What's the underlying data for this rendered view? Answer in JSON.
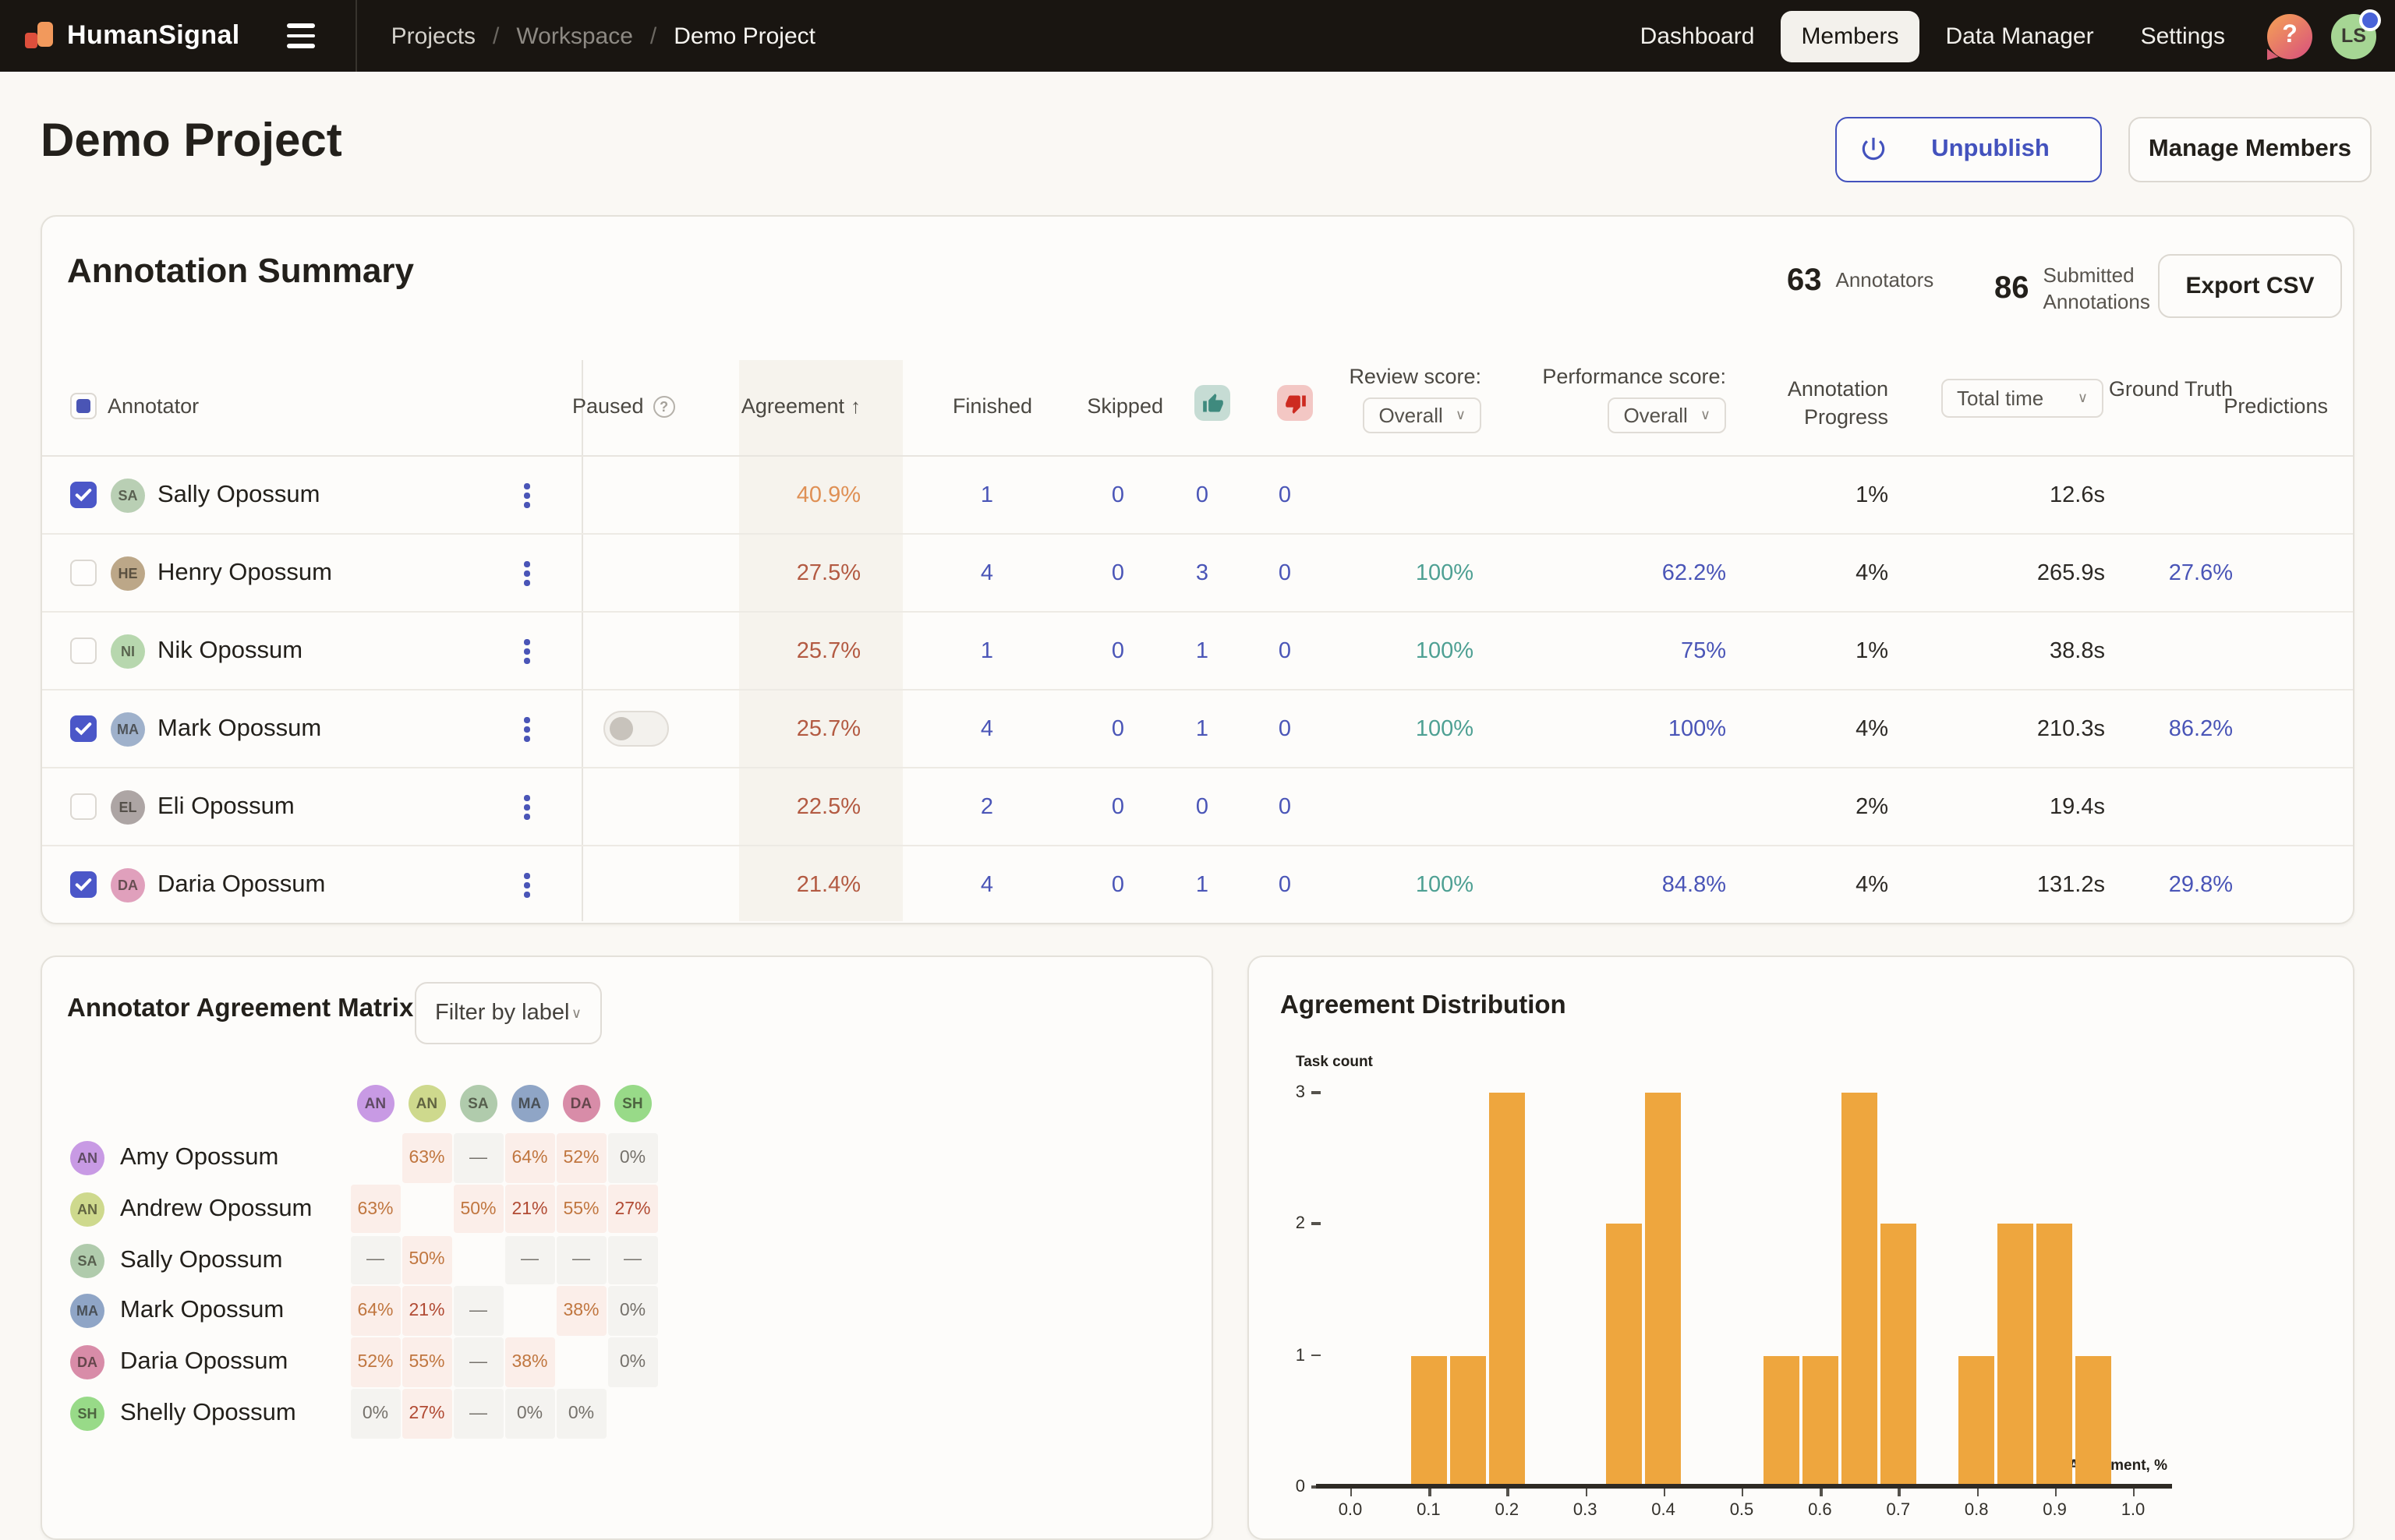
{
  "topbar": {
    "brand": "HumanSignal",
    "breadcrumbs": [
      {
        "label": "Projects",
        "tone": "light"
      },
      {
        "label": "Workspace",
        "tone": "dim"
      },
      {
        "label": "Demo Project",
        "tone": "active"
      }
    ],
    "nav": [
      {
        "label": "Dashboard",
        "active": false
      },
      {
        "label": "Members",
        "active": true
      },
      {
        "label": "Data Manager",
        "active": false
      },
      {
        "label": "Settings",
        "active": false
      }
    ],
    "help_glyph": "?",
    "avatar_initials": "LS"
  },
  "page": {
    "title": "Demo Project",
    "unpublish_label": "Unpublish",
    "manage_members_label": "Manage Members"
  },
  "summary": {
    "title": "Annotation Summary",
    "stats": [
      {
        "value": "63",
        "label": "Annotators"
      },
      {
        "value": "86",
        "label": "Submitted Annotations"
      }
    ],
    "export_label": "Export CSV",
    "overall": "Overall",
    "columns": {
      "annotator": "Annotator",
      "paused": "Paused",
      "agreement": "Agreement",
      "finished": "Finished",
      "skipped": "Skipped",
      "review_score": "Review score:",
      "performance_score": "Performance score:",
      "annotation_progress": "Annotation Progress",
      "total_time": "Total time",
      "ground_truth": "Ground Truth",
      "predictions": "Predictions"
    },
    "rows": [
      {
        "name": "Sally Opossum",
        "initials": "SA",
        "avatar_color": "#b9cfb4",
        "checked": true,
        "paused_toggle": false,
        "agreement": "40.9%",
        "agreement_tone": "orange",
        "finished": "1",
        "skipped": "0",
        "thumbs_up": "0",
        "thumbs_down": "0",
        "review": "",
        "performance": "",
        "progress": "1%",
        "total_time": "12.6s",
        "ground_truth": ""
      },
      {
        "name": "Henry Opossum",
        "initials": "HE",
        "avatar_color": "#bca788",
        "checked": false,
        "paused_toggle": false,
        "agreement": "27.5%",
        "agreement_tone": "red",
        "finished": "4",
        "skipped": "0",
        "thumbs_up": "3",
        "thumbs_down": "0",
        "review": "100%",
        "performance": "62.2%",
        "progress": "4%",
        "total_time": "265.9s",
        "ground_truth": "27.6%"
      },
      {
        "name": "Nik Opossum",
        "initials": "NI",
        "avatar_color": "#b7d7ae",
        "checked": false,
        "paused_toggle": false,
        "agreement": "25.7%",
        "agreement_tone": "red",
        "finished": "1",
        "skipped": "0",
        "thumbs_up": "1",
        "thumbs_down": "0",
        "review": "100%",
        "performance": "75%",
        "progress": "1%",
        "total_time": "38.8s",
        "ground_truth": ""
      },
      {
        "name": "Mark Opossum",
        "initials": "MA",
        "avatar_color": "#9fb1cb",
        "checked": true,
        "paused_toggle": true,
        "agreement": "25.7%",
        "agreement_tone": "red",
        "finished": "4",
        "skipped": "0",
        "thumbs_up": "1",
        "thumbs_down": "0",
        "review": "100%",
        "performance": "100%",
        "progress": "4%",
        "total_time": "210.3s",
        "ground_truth": "86.2%"
      },
      {
        "name": "Eli Opossum",
        "initials": "EL",
        "avatar_color": "#ada5a4",
        "checked": false,
        "paused_toggle": false,
        "agreement": "22.5%",
        "agreement_tone": "red",
        "finished": "2",
        "skipped": "0",
        "thumbs_up": "0",
        "thumbs_down": "0",
        "review": "",
        "performance": "",
        "progress": "2%",
        "total_time": "19.4s",
        "ground_truth": ""
      },
      {
        "name": "Daria Opossum",
        "initials": "DA",
        "avatar_color": "#e0a0bc",
        "checked": true,
        "paused_toggle": false,
        "agreement": "21.4%",
        "agreement_tone": "red",
        "finished": "4",
        "skipped": "0",
        "thumbs_up": "1",
        "thumbs_down": "0",
        "review": "100%",
        "performance": "84.8%",
        "progress": "4%",
        "total_time": "131.2s",
        "ground_truth": "29.8%"
      }
    ]
  },
  "matrix": {
    "title": "Annotator Agreement Matrix",
    "filter_label": "Filter by label",
    "columns": [
      {
        "initials": "AN",
        "color": "#c89ae4"
      },
      {
        "initials": "AN",
        "color": "#ced98d"
      },
      {
        "initials": "SA",
        "color": "#b0cbac"
      },
      {
        "initials": "MA",
        "color": "#8fa5c6"
      },
      {
        "initials": "DA",
        "color": "#d88ca8"
      },
      {
        "initials": "SH",
        "color": "#98da88"
      }
    ],
    "rows": [
      {
        "name": "Amy Opossum",
        "initials": "AN",
        "color": "#c89ae4",
        "cells": [
          null,
          {
            "v": "63%",
            "tone": "orange"
          },
          {
            "v": "—",
            "tone": "muted"
          },
          {
            "v": "64%",
            "tone": "orange"
          },
          {
            "v": "52%",
            "tone": "orange"
          },
          {
            "v": "0%",
            "tone": "muted"
          }
        ]
      },
      {
        "name": "Andrew Opossum",
        "initials": "AN",
        "color": "#ced98d",
        "cells": [
          {
            "v": "63%",
            "tone": "orange"
          },
          null,
          {
            "v": "50%",
            "tone": "orange"
          },
          {
            "v": "21%",
            "tone": "red"
          },
          {
            "v": "55%",
            "tone": "orange"
          },
          {
            "v": "27%",
            "tone": "red"
          }
        ]
      },
      {
        "name": "Sally Opossum",
        "initials": "SA",
        "color": "#b0cbac",
        "cells": [
          {
            "v": "—",
            "tone": "muted"
          },
          {
            "v": "50%",
            "tone": "orange"
          },
          null,
          {
            "v": "—",
            "tone": "muted"
          },
          {
            "v": "—",
            "tone": "muted"
          },
          {
            "v": "—",
            "tone": "muted"
          }
        ]
      },
      {
        "name": "Mark Opossum",
        "initials": "MA",
        "color": "#8fa5c6",
        "cells": [
          {
            "v": "64%",
            "tone": "orange"
          },
          {
            "v": "21%",
            "tone": "red"
          },
          {
            "v": "—",
            "tone": "muted"
          },
          null,
          {
            "v": "38%",
            "tone": "orange"
          },
          {
            "v": "0%",
            "tone": "muted"
          }
        ]
      },
      {
        "name": "Daria Opossum",
        "initials": "DA",
        "color": "#d88ca8",
        "cells": [
          {
            "v": "52%",
            "tone": "orange"
          },
          {
            "v": "55%",
            "tone": "orange"
          },
          {
            "v": "—",
            "tone": "muted"
          },
          {
            "v": "38%",
            "tone": "orange"
          },
          null,
          {
            "v": "0%",
            "tone": "muted"
          }
        ]
      },
      {
        "name": "Shelly Opossum",
        "initials": "SH",
        "color": "#98da88",
        "cells": [
          {
            "v": "0%",
            "tone": "muted"
          },
          {
            "v": "27%",
            "tone": "red"
          },
          {
            "v": "—",
            "tone": "muted"
          },
          {
            "v": "0%",
            "tone": "muted"
          },
          {
            "v": "0%",
            "tone": "muted"
          },
          null
        ]
      }
    ]
  },
  "chart_data": {
    "type": "bar",
    "title": "Agreement Distribution",
    "xlabel": "Agreement, %",
    "ylabel": "Task count",
    "x": [
      0.1,
      0.15,
      0.2,
      0.35,
      0.4,
      0.55,
      0.6,
      0.65,
      0.7,
      0.8,
      0.85,
      0.9,
      0.95
    ],
    "values": [
      1,
      1,
      3,
      2,
      3,
      1,
      1,
      3,
      2,
      1,
      2,
      2,
      1
    ],
    "bin_width": 0.05,
    "bar_color": "#eea63e",
    "xticks": [
      "0.0",
      "0.1",
      "0.2",
      "0.3",
      "0.4",
      "0.5",
      "0.6",
      "0.7",
      "0.8",
      "0.9",
      "1.0"
    ],
    "yticks": [
      0,
      1,
      2,
      3
    ],
    "xlim": [
      0.0,
      1.0
    ],
    "ylim": [
      0,
      3
    ],
    "grid": false,
    "legend": false
  }
}
